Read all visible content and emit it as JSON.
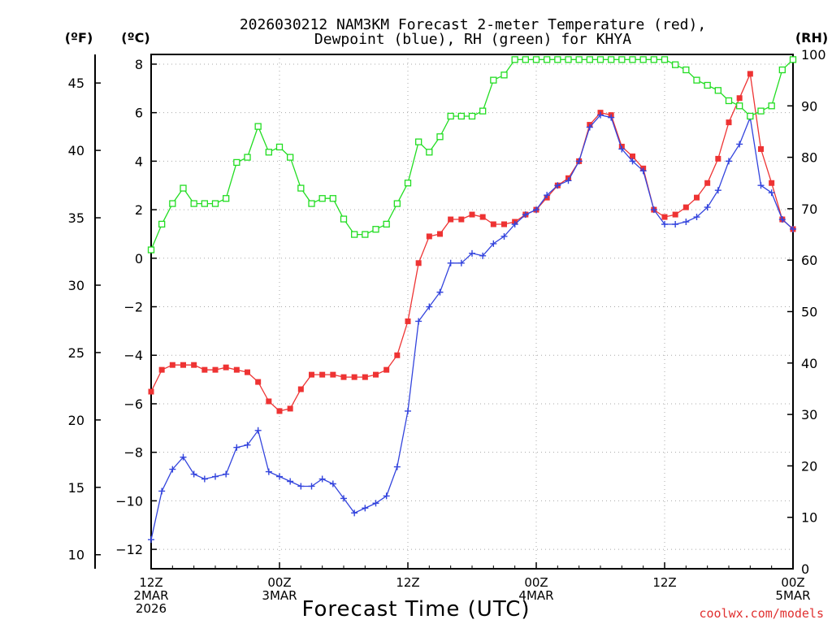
{
  "chart_data": {
    "type": "line",
    "title_line1": "2026030212 NAM3KM Forecast 2-meter Temperature (red),",
    "title_line2": "Dewpoint (blue), RH (green) for KHYA",
    "left_axis_f_label": "(ºF)",
    "left_axis_c_label": "(ºC)",
    "right_axis_label": "(RH)",
    "xlabel": "Forecast Time (UTC)",
    "credit": "coolwx.com/models",
    "x_range_hours": [
      0,
      60
    ],
    "x_ticks": [
      {
        "hour": 0,
        "line1": "12Z",
        "line2": "2MAR",
        "line3": "2026"
      },
      {
        "hour": 12,
        "line1": "00Z",
        "line2": "3MAR",
        "line3": ""
      },
      {
        "hour": 24,
        "line1": "12Z",
        "line2": "",
        "line3": ""
      },
      {
        "hour": 36,
        "line1": "00Z",
        "line2": "4MAR",
        "line3": ""
      },
      {
        "hour": 48,
        "line1": "12Z",
        "line2": "",
        "line3": ""
      },
      {
        "hour": 60,
        "line1": "00Z",
        "line2": "5MAR",
        "line3": ""
      }
    ],
    "celsius_range": [
      -12.8,
      8.4
    ],
    "celsius_ticks": [
      -12,
      -10,
      -8,
      -6,
      -4,
      -2,
      0,
      2,
      4,
      6,
      8
    ],
    "celsius_tick_labels": [
      "−12",
      "−10",
      "−8",
      "−6",
      "−4",
      "−2",
      "0",
      "2",
      "4",
      "6",
      "8"
    ],
    "fahrenheit_ticks": [
      10,
      15,
      20,
      25,
      30,
      35,
      40,
      45
    ],
    "rh_range": [
      0,
      100
    ],
    "rh_ticks": [
      0,
      10,
      20,
      30,
      40,
      50,
      60,
      70,
      80,
      90,
      100
    ],
    "series": [
      {
        "name": "2-meter Temperature",
        "color": "#ee3333",
        "marker": "filled-square",
        "axis": "celsius",
        "values": [
          -5.5,
          -4.6,
          -4.4,
          -4.4,
          -4.4,
          -4.6,
          -4.6,
          -4.5,
          -4.6,
          -4.7,
          -5.1,
          -5.9,
          -6.3,
          -6.2,
          -5.4,
          -4.8,
          -4.8,
          -4.8,
          -4.9,
          -4.9,
          -4.9,
          -4.8,
          -4.6,
          -4.0,
          -2.6,
          -0.2,
          0.9,
          1.0,
          1.6,
          1.6,
          1.8,
          1.7,
          1.4,
          1.4,
          1.5,
          1.8,
          2.0,
          2.5,
          3.0,
          3.3,
          4.0,
          5.5,
          6.0,
          5.9,
          4.6,
          4.2,
          3.7,
          2.0,
          1.7,
          1.8,
          2.1,
          2.5,
          3.1,
          4.1,
          5.6,
          6.6,
          7.6,
          4.5,
          3.1,
          1.6,
          1.2
        ]
      },
      {
        "name": "Dewpoint",
        "color": "#3344dd",
        "marker": "plus",
        "axis": "celsius",
        "values": [
          -11.6,
          -9.6,
          -8.7,
          -8.2,
          -8.9,
          -9.1,
          -9.0,
          -8.9,
          -7.8,
          -7.7,
          -7.1,
          -8.8,
          -9.0,
          -9.2,
          -9.4,
          -9.4,
          -9.1,
          -9.3,
          -9.9,
          -10.5,
          -10.3,
          -10.1,
          -9.8,
          -8.6,
          -6.3,
          -2.6,
          -2.0,
          -1.4,
          -0.2,
          -0.2,
          0.2,
          0.1,
          0.6,
          0.9,
          1.4,
          1.8,
          2.0,
          2.6,
          3.0,
          3.2,
          4.0,
          5.4,
          5.9,
          5.8,
          4.5,
          4.0,
          3.6,
          2.0,
          1.4,
          1.4,
          1.5,
          1.7,
          2.1,
          2.8,
          4.0,
          4.7,
          5.8,
          3.0,
          2.7,
          1.6,
          1.2
        ]
      },
      {
        "name": "Relative Humidity",
        "color": "#22dd22",
        "marker": "open-square",
        "axis": "rh",
        "values": [
          62,
          67,
          71,
          74,
          71,
          71,
          71,
          72,
          79,
          80,
          86,
          81,
          82,
          80,
          74,
          71,
          72,
          72,
          68,
          65,
          65,
          66,
          67,
          71,
          75,
          83,
          81,
          84,
          88,
          88,
          88,
          89,
          95,
          96,
          99,
          99,
          99,
          99,
          99,
          99,
          99,
          99,
          99,
          99,
          99,
          99,
          99,
          99,
          99,
          98,
          97,
          95,
          94,
          93,
          91,
          90,
          88,
          89,
          90,
          97,
          99
        ]
      }
    ]
  }
}
